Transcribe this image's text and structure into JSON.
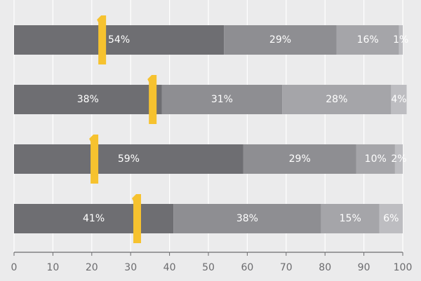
{
  "chart_data": {
    "type": "bar",
    "orientation": "horizontal",
    "stacked": true,
    "xlim": [
      0,
      100
    ],
    "x_ticks": [
      0,
      10,
      20,
      30,
      40,
      50,
      60,
      70,
      80,
      90,
      100
    ],
    "grid": "vertical",
    "series_colors": [
      "#6e6e72",
      "#8e8e92",
      "#a5a5a9",
      "#bdbdc1"
    ],
    "marker_color": "#f6c22f",
    "rows": [
      {
        "values": [
          54,
          29,
          16,
          1
        ],
        "labels": [
          "54%",
          "29%",
          "16%",
          "1%"
        ],
        "marker": 22.5
      },
      {
        "values": [
          38,
          31,
          28,
          4
        ],
        "labels": [
          "38%",
          "31%",
          "28%",
          "4%"
        ],
        "marker": 35.5
      },
      {
        "values": [
          59,
          29,
          10,
          2
        ],
        "labels": [
          "59%",
          "29%",
          "10%",
          "2%"
        ],
        "marker": 20.5
      },
      {
        "values": [
          41,
          38,
          15,
          6
        ],
        "labels": [
          "41%",
          "38%",
          "15%",
          "6%"
        ],
        "marker": 31.5
      }
    ]
  }
}
